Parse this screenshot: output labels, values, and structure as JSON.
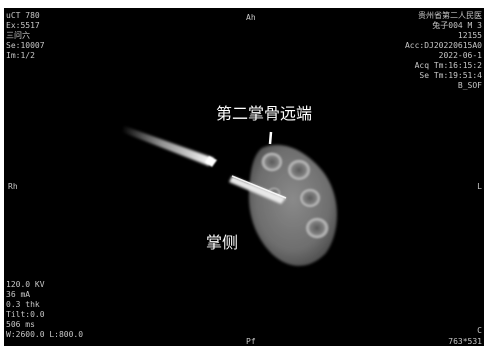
{
  "viewer": {
    "top_left": [
      "uCT 780",
      "Ex:5517",
      "三问六",
      "Se:10007",
      "Im:1/2"
    ],
    "top_center": "Ah",
    "top_right": [
      "贵州省第二人民医",
      "兔子004 M 3",
      "12155",
      "Acc:DJ20220615A0",
      "2022-06-1",
      "Acq Tm:16:15:2",
      "Se Tm:19:51:4",
      "B_SOF"
    ],
    "left_marker": "Rh",
    "right_marker": "L",
    "bottom_left": [
      "120.0 KV",
      "36 mA",
      "0.3 thk",
      "Tilt:0.0",
      "506 ms",
      "W:2600.0 L:800.0"
    ],
    "bottom_center": "Pf",
    "bottom_right": "763*531",
    "bottom_right_marker": "C"
  },
  "annotations": {
    "distal_label": "第二掌骨远端",
    "palmar_label": "掌侧"
  },
  "colors": {
    "background": "#000000",
    "overlay_text": "#c8c8c8",
    "annotation_text": "#ffffff"
  }
}
